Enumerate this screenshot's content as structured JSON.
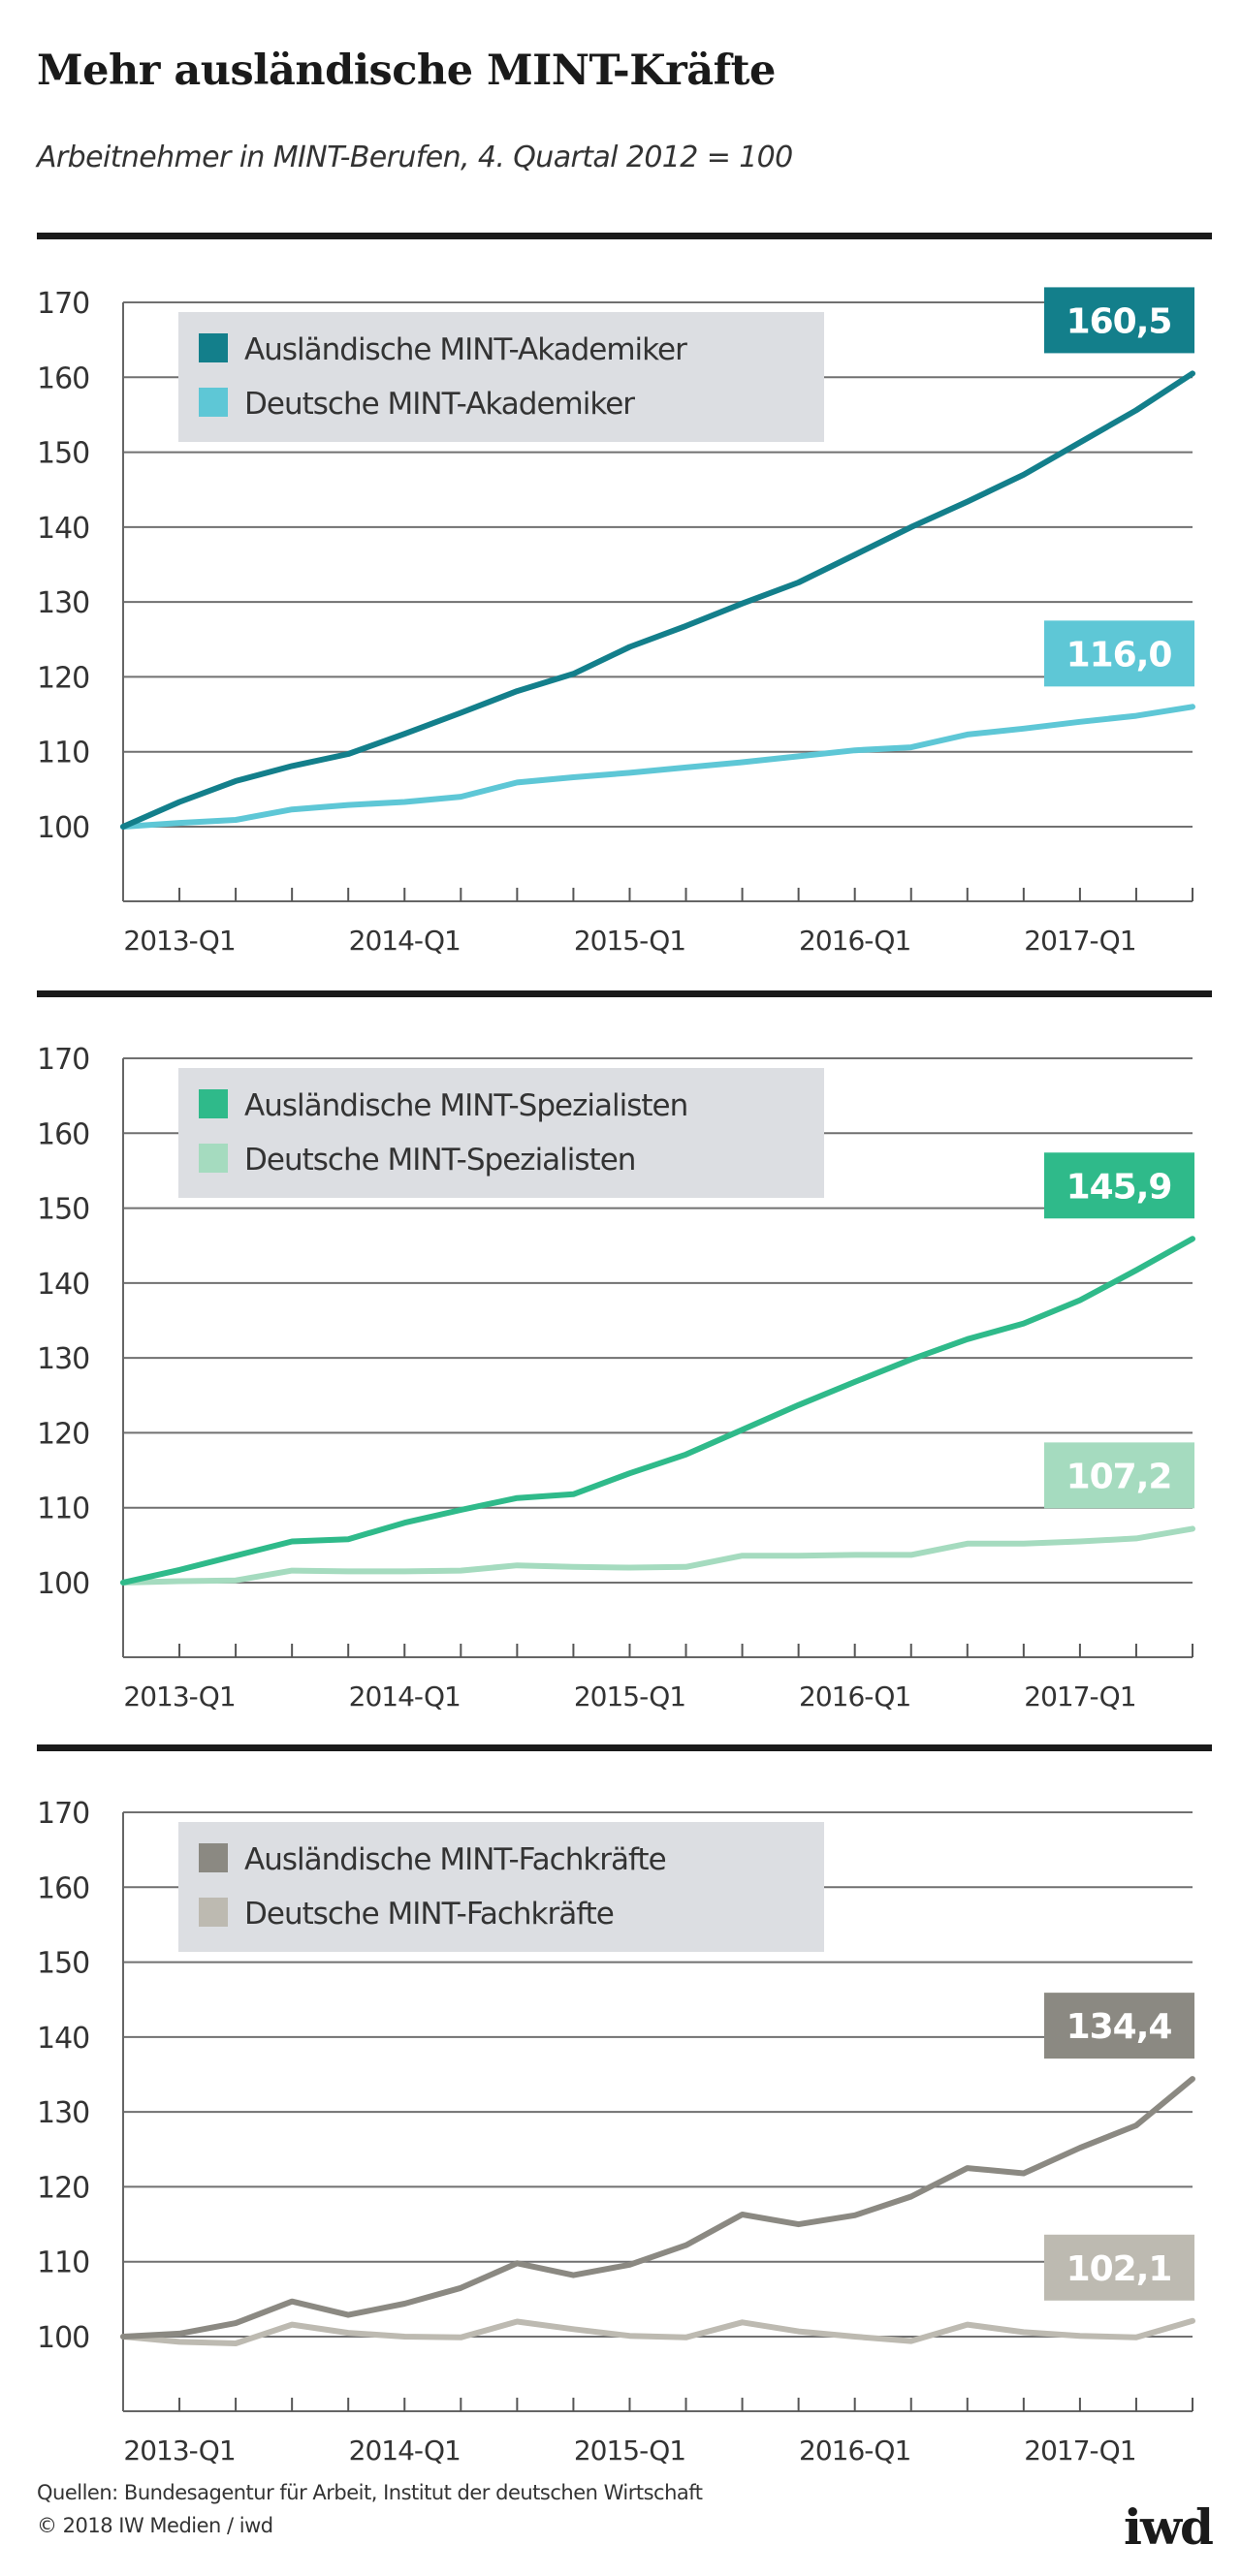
{
  "header": {
    "title": "Mehr ausländische MINT-Kräfte",
    "subtitle": "Arbeitnehmer in MINT-Berufen, 4. Quartal 2012 = 100"
  },
  "footer": {
    "source": "Quellen: Bundesagentur für Arbeit, Institut der deutschen Wirtschaft",
    "copyright": "© 2018 IW Medien / iwd",
    "logo": "iwd"
  },
  "chart_data": [
    {
      "type": "line",
      "title": "",
      "xlabel": "",
      "ylabel": "",
      "ylim": [
        90,
        170
      ],
      "yticks": [
        100,
        110,
        120,
        130,
        140,
        150,
        160,
        170
      ],
      "grid": true,
      "legend_position": "top-left",
      "x": [
        "2012-Q4",
        "2013-Q1",
        "2013-Q2",
        "2013-Q3",
        "2013-Q4",
        "2014-Q1",
        "2014-Q2",
        "2014-Q3",
        "2014-Q4",
        "2015-Q1",
        "2015-Q2",
        "2015-Q3",
        "2015-Q4",
        "2016-Q1",
        "2016-Q2",
        "2016-Q3",
        "2016-Q4",
        "2017-Q1",
        "2017-Q2",
        "2017-Q3"
      ],
      "xtick_labels": [
        "2013-Q1",
        "2014-Q1",
        "2015-Q1",
        "2016-Q1",
        "2017-Q1"
      ],
      "series": [
        {
          "name": "Ausländische MINT-Akademiker",
          "color": "#137f8b",
          "end_label": "160,5",
          "values": [
            100,
            103.3,
            106.1,
            108.1,
            109.7,
            112.4,
            115.2,
            118.1,
            120.4,
            124.0,
            126.8,
            129.8,
            132.6,
            136.3,
            140.0,
            143.4,
            147.0,
            151.3,
            155.6,
            160.5
          ]
        },
        {
          "name": "Deutsche MINT-Akademiker",
          "color": "#5ec7d6",
          "end_label": "116,0",
          "values": [
            100,
            100.5,
            100.9,
            102.3,
            102.9,
            103.3,
            104.0,
            105.9,
            106.6,
            107.2,
            107.9,
            108.6,
            109.4,
            110.2,
            110.6,
            112.3,
            113.1,
            114.0,
            114.8,
            116.0
          ]
        }
      ]
    },
    {
      "type": "line",
      "title": "",
      "xlabel": "",
      "ylabel": "",
      "ylim": [
        90,
        170
      ],
      "yticks": [
        100,
        110,
        120,
        130,
        140,
        150,
        160,
        170
      ],
      "grid": true,
      "legend_position": "top-left",
      "x": [
        "2012-Q4",
        "2013-Q1",
        "2013-Q2",
        "2013-Q3",
        "2013-Q4",
        "2014-Q1",
        "2014-Q2",
        "2014-Q3",
        "2014-Q4",
        "2015-Q1",
        "2015-Q2",
        "2015-Q3",
        "2015-Q4",
        "2016-Q1",
        "2016-Q2",
        "2016-Q3",
        "2016-Q4",
        "2017-Q1",
        "2017-Q2",
        "2017-Q3"
      ],
      "xtick_labels": [
        "2013-Q1",
        "2014-Q1",
        "2015-Q1",
        "2016-Q1",
        "2017-Q1"
      ],
      "series": [
        {
          "name": "Ausländische MINT-Spezialisten",
          "color": "#2fba8a",
          "end_label": "145,9",
          "values": [
            100,
            101.7,
            103.6,
            105.5,
            105.8,
            108.0,
            109.7,
            111.3,
            111.8,
            114.6,
            117.1,
            120.4,
            123.7,
            126.8,
            129.8,
            132.5,
            134.6,
            137.7,
            141.7,
            145.9
          ]
        },
        {
          "name": "Deutsche MINT-Spezialisten",
          "color": "#a5dbbf",
          "end_label": "107,2",
          "values": [
            100,
            100.2,
            100.3,
            101.6,
            101.5,
            101.5,
            101.6,
            102.3,
            102.1,
            102.0,
            102.1,
            103.6,
            103.6,
            103.7,
            103.7,
            105.2,
            105.2,
            105.5,
            105.9,
            107.2
          ]
        }
      ]
    },
    {
      "type": "line",
      "title": "",
      "xlabel": "",
      "ylabel": "",
      "ylim": [
        90,
        170
      ],
      "yticks": [
        100,
        110,
        120,
        130,
        140,
        150,
        160,
        170
      ],
      "grid": true,
      "legend_position": "top-left",
      "x": [
        "2012-Q4",
        "2013-Q1",
        "2013-Q2",
        "2013-Q3",
        "2013-Q4",
        "2014-Q1",
        "2014-Q2",
        "2014-Q3",
        "2014-Q4",
        "2015-Q1",
        "2015-Q2",
        "2015-Q3",
        "2015-Q4",
        "2016-Q1",
        "2016-Q2",
        "2016-Q3",
        "2016-Q4",
        "2017-Q1",
        "2017-Q2",
        "2017-Q3"
      ],
      "xtick_labels": [
        "2013-Q1",
        "2014-Q1",
        "2015-Q1",
        "2016-Q1",
        "2017-Q1"
      ],
      "series": [
        {
          "name": "Ausländische MINT-Fachkräfte",
          "color": "#8b8982",
          "end_label": "134,4",
          "values": [
            100,
            100.4,
            101.8,
            104.7,
            102.9,
            104.4,
            106.5,
            109.8,
            108.2,
            109.6,
            112.2,
            116.3,
            115.0,
            116.2,
            118.7,
            122.5,
            121.8,
            125.2,
            128.2,
            134.4
          ]
        },
        {
          "name": "Deutsche MINT-Fachkräfte",
          "color": "#bdbab1",
          "end_label": "102,1",
          "values": [
            100,
            99.3,
            99.1,
            101.6,
            100.5,
            100.0,
            99.9,
            102.0,
            101.0,
            100.1,
            99.9,
            101.9,
            100.7,
            100.0,
            99.4,
            101.6,
            100.6,
            100.1,
            99.9,
            102.1
          ]
        }
      ]
    }
  ]
}
